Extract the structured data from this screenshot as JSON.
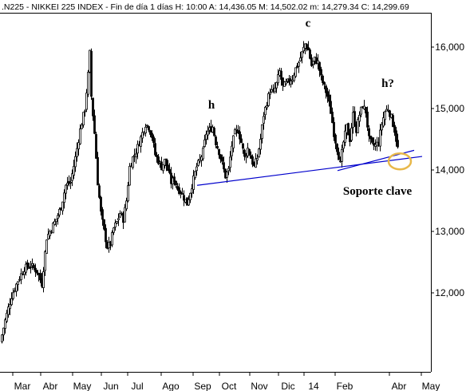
{
  "header": {
    "text": ".N225 - NIKKEI 225 INDEX - Fin de día 1 días  H: 10:00  A: 14,436.05  M: 14,502.02  m: 14,279.34  C: 14,299.69"
  },
  "chart_data": {
    "type": "candlestick",
    "title": ".N225 - NIKKEI 225 INDEX",
    "x_labels": [
      "Mar",
      "Abr",
      "May",
      "Jun",
      "Jul",
      "Ago",
      "Sep",
      "Oct",
      "Nov",
      "Dic",
      "14",
      "Feb",
      "Abr",
      "May"
    ],
    "y_ticks": [
      "16,000",
      "15,000",
      "14,000",
      "13,000",
      "12,000"
    ],
    "ylim": [
      11000,
      16600
    ],
    "grid": false,
    "last_bar": {
      "open": 14436.05,
      "high": 14502.02,
      "low": 14279.34,
      "close": 14299.69
    },
    "path_points": [
      [
        0,
        11200
      ],
      [
        6,
        11550
      ],
      [
        14,
        11950
      ],
      [
        22,
        12200
      ],
      [
        30,
        12400
      ],
      [
        38,
        12450
      ],
      [
        46,
        12350
      ],
      [
        52,
        12150
      ],
      [
        58,
        12900
      ],
      [
        64,
        13050
      ],
      [
        70,
        13200
      ],
      [
        76,
        13400
      ],
      [
        82,
        13750
      ],
      [
        88,
        13800
      ],
      [
        94,
        14200
      ],
      [
        100,
        14650
      ],
      [
        106,
        15000
      ],
      [
        110,
        15550
      ],
      [
        112,
        15900
      ],
      [
        114,
        15200
      ],
      [
        118,
        14600
      ],
      [
        122,
        13800
      ],
      [
        126,
        13300
      ],
      [
        130,
        13000
      ],
      [
        134,
        12750
      ],
      [
        138,
        12800
      ],
      [
        142,
        13050
      ],
      [
        146,
        13150
      ],
      [
        150,
        13300
      ],
      [
        154,
        13200
      ],
      [
        158,
        13500
      ],
      [
        162,
        14050
      ],
      [
        166,
        14200
      ],
      [
        170,
        14300
      ],
      [
        174,
        14450
      ],
      [
        178,
        14600
      ],
      [
        182,
        14750
      ],
      [
        186,
        14700
      ],
      [
        190,
        14550
      ],
      [
        194,
        14250
      ],
      [
        198,
        14150
      ],
      [
        202,
        14050
      ],
      [
        206,
        14150
      ],
      [
        210,
        14000
      ],
      [
        214,
        13800
      ],
      [
        218,
        13850
      ],
      [
        222,
        13700
      ],
      [
        226,
        13650
      ],
      [
        230,
        13550
      ],
      [
        234,
        13450
      ],
      [
        238,
        13650
      ],
      [
        242,
        13850
      ],
      [
        246,
        14050
      ],
      [
        250,
        14150
      ],
      [
        254,
        14300
      ],
      [
        258,
        14600
      ],
      [
        262,
        14650
      ],
      [
        266,
        14700
      ],
      [
        270,
        14450
      ],
      [
        274,
        14300
      ],
      [
        278,
        14100
      ],
      [
        282,
        13900
      ],
      [
        286,
        14000
      ],
      [
        290,
        14400
      ],
      [
        294,
        14600
      ],
      [
        298,
        14650
      ],
      [
        302,
        14450
      ],
      [
        306,
        14200
      ],
      [
        310,
        14350
      ],
      [
        314,
        14200
      ],
      [
        318,
        14050
      ],
      [
        322,
        14200
      ],
      [
        326,
        14500
      ],
      [
        330,
        14900
      ],
      [
        334,
        15100
      ],
      [
        338,
        15300
      ],
      [
        342,
        15250
      ],
      [
        346,
        15400
      ],
      [
        350,
        15600
      ],
      [
        354,
        15350
      ],
      [
        358,
        15400
      ],
      [
        362,
        15450
      ],
      [
        366,
        15500
      ],
      [
        370,
        15650
      ],
      [
        374,
        15750
      ],
      [
        378,
        15900
      ],
      [
        382,
        16050
      ],
      [
        386,
        15950
      ],
      [
        390,
        15700
      ],
      [
        394,
        15800
      ],
      [
        398,
        15750
      ],
      [
        402,
        15500
      ],
      [
        406,
        15350
      ],
      [
        410,
        15200
      ],
      [
        414,
        14950
      ],
      [
        418,
        14600
      ],
      [
        422,
        14350
      ],
      [
        426,
        14100
      ],
      [
        430,
        14450
      ],
      [
        434,
        14700
      ],
      [
        438,
        14500
      ],
      [
        442,
        14900
      ],
      [
        446,
        14650
      ],
      [
        450,
        14900
      ],
      [
        454,
        15050
      ],
      [
        458,
        14950
      ],
      [
        462,
        14500
      ],
      [
        466,
        14400
      ],
      [
        470,
        14400
      ],
      [
        474,
        14450
      ],
      [
        478,
        14750
      ],
      [
        482,
        14950
      ],
      [
        486,
        15000
      ],
      [
        490,
        14850
      ],
      [
        494,
        14650
      ],
      [
        498,
        14350
      ]
    ],
    "support_lines": [
      {
        "from": [
          247,
          13750
        ],
        "to": [
          529,
          14220
        ]
      },
      {
        "from": [
          423,
          13990
        ],
        "to": [
          519,
          14320
        ]
      }
    ],
    "annotations": [
      {
        "text": "h",
        "x": 265,
        "y": 15000
      },
      {
        "text": "c",
        "x": 386,
        "y": 16330
      },
      {
        "text": "h?",
        "x": 486,
        "y": 15350
      },
      {
        "text": "Soporte clave",
        "x": 473,
        "y": 13600
      }
    ],
    "highlight": {
      "x": 501,
      "y": 14140,
      "color": "#e8b84a"
    },
    "colors": {
      "line": "#0000cc",
      "candle": "#000000"
    }
  }
}
